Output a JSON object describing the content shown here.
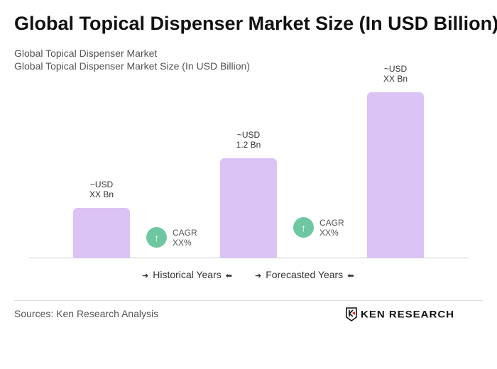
{
  "title": "Global Topical Dispenser Market Size (In USD Billion)",
  "subtitle1": "Global Topical Dispenser Market",
  "subtitle2": "Global Topical Dispenser Market Size (In USD Billion)",
  "chart_data": {
    "type": "bar",
    "categories": [
      "",
      "",
      " "
    ],
    "values": [
      0.6,
      1.2,
      2.0
    ],
    "data_labels": [
      [
        "~USD",
        "XX Bn"
      ],
      [
        "~USD",
        "1.2 Bn"
      ],
      [
        "~USD",
        "XX Bn"
      ]
    ],
    "bar_color": "#dcc3f6",
    "grid": false
  },
  "cagr": [
    {
      "label": "CAGR",
      "value": "XX%"
    },
    {
      "label": "CAGR",
      "value": "XX%"
    }
  ],
  "cagr_color": "#6fc7a2",
  "legend": {
    "historical": "Historical Years",
    "forecasted": "Forecasted Years"
  },
  "source": "Sources: Ken Research Analysis",
  "logo": "KEN RESEARCH"
}
